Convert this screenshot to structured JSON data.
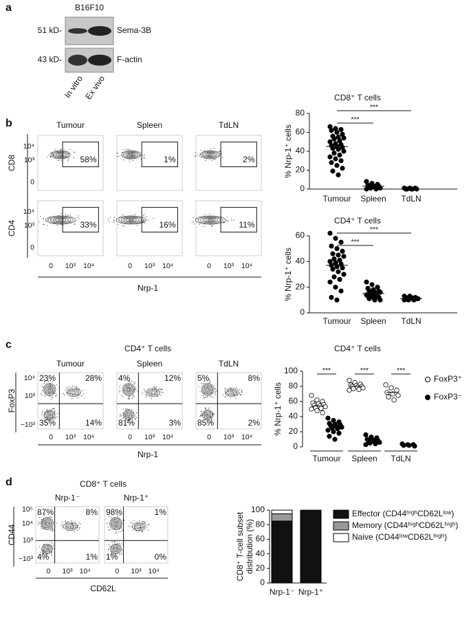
{
  "panel_a": {
    "label": "a",
    "cell_line": "B16F10",
    "blots": [
      {
        "size": "51 kD-",
        "protein": "Sema-3B"
      },
      {
        "size": "43 kD-",
        "protein": "F-actin"
      }
    ],
    "lanes": [
      "In vitro",
      "Ex vivo"
    ]
  },
  "panel_b": {
    "label": "b",
    "columns": [
      "Tumour",
      "Spleen",
      "TdLN"
    ],
    "rows": [
      {
        "marker": "CD8",
        "gates": [
          "58%",
          "1%",
          "2%"
        ]
      },
      {
        "marker": "CD4",
        "gates": [
          "33%",
          "16%",
          "11%"
        ]
      }
    ],
    "yticks": [
      "10⁴",
      "10³",
      "0"
    ],
    "xticks": [
      "0",
      "10³",
      "10⁴"
    ],
    "xlabel": "Nrp-1"
  },
  "panel_c": {
    "label": "c",
    "title": "CD4⁺ T cells",
    "columns": [
      "Tumour",
      "Spleen",
      "TdLN"
    ],
    "ylabel": "FoxP3",
    "quadrants": [
      [
        "23%",
        "28%",
        "35%",
        "14%"
      ],
      [
        "4%",
        "12%",
        "81%",
        "3%"
      ],
      [
        "5%",
        "8%",
        "85%",
        "2%"
      ]
    ],
    "yticks": [
      "10⁴",
      "10³",
      "−10³"
    ],
    "xticks": [
      "0",
      "10³",
      "10⁴"
    ],
    "xlabel": "Nrp-1"
  },
  "panel_d": {
    "label": "d",
    "title": "CD8⁺ T cells",
    "columns": [
      "Nrp-1⁻",
      "Nrp-1⁺"
    ],
    "ylabel": "CD44",
    "quadrants": [
      [
        "87%",
        "8%",
        "4%",
        "1%"
      ],
      [
        "98%",
        "1%",
        "1%",
        "0%"
      ]
    ],
    "yticks": [
      "10⁵",
      "10⁴",
      "10³",
      "−10³"
    ],
    "xticks": [
      "0",
      "10³",
      "10⁴"
    ],
    "xlabel": "CD62L"
  },
  "chart_data": [
    {
      "type": "strip",
      "title": "CD8⁺ T cells",
      "ylabel": "% Nrp-1⁺ cells",
      "categories": [
        "Tumour",
        "Spleen",
        "TdLN"
      ],
      "values": [
        [
          66,
          64,
          63,
          62,
          60,
          58,
          56,
          55,
          54,
          53,
          51,
          50,
          48,
          47,
          46,
          45,
          44,
          43,
          42,
          40,
          38,
          36,
          34,
          32,
          30,
          28,
          25,
          22,
          19,
          15
        ],
        [
          8,
          6,
          5,
          4,
          3,
          3,
          2,
          2,
          1,
          1,
          0,
          0
        ],
        [
          1,
          1,
          1,
          0,
          0,
          0,
          0,
          0
        ]
      ],
      "means": [
        45,
        3,
        0
      ],
      "significance": [
        "***",
        "***"
      ],
      "ylim": [
        0,
        80
      ],
      "yticks": [
        0,
        20,
        40,
        60,
        80
      ]
    },
    {
      "type": "strip",
      "title": "CD4⁺ T cells",
      "ylabel": "% Nrp-1⁺ cells",
      "categories": [
        "Tumour",
        "Spleen",
        "TdLN"
      ],
      "values": [
        [
          62,
          58,
          55,
          52,
          50,
          48,
          46,
          45,
          44,
          42,
          41,
          40,
          39,
          38,
          37,
          36,
          35,
          34,
          32,
          30,
          28,
          26,
          24,
          20,
          17,
          12,
          10
        ],
        [
          24,
          22,
          20,
          19,
          18,
          17,
          17,
          16,
          16,
          15,
          15,
          14,
          14,
          13,
          13,
          12,
          12,
          11,
          10,
          10
        ],
        [
          13,
          13,
          12,
          12,
          12,
          11,
          11,
          11,
          11,
          10,
          10,
          10
        ]
      ],
      "means": [
        37,
        15,
        11
      ],
      "significance": [
        "***",
        "***"
      ],
      "ylim": [
        0,
        60
      ],
      "yticks": [
        0,
        20,
        40,
        60
      ]
    },
    {
      "type": "paired_strip",
      "title": "CD4⁺ T cells",
      "ylabel": "% Nrp-1⁺ cells",
      "categories": [
        "Tumour",
        "Spleen",
        "TdLN"
      ],
      "series": [
        {
          "name": "FoxP3⁺",
          "color": "#ffffff",
          "values": [
            [
              68,
              62,
              60,
              58,
              57,
              56,
              55,
              54,
              53,
              52,
              51,
              50,
              48,
              45
            ],
            [
              88,
              85,
              83,
              82,
              81,
              80,
              80,
              79,
              78,
              77,
              76,
              75
            ],
            [
              82,
              78,
              75,
              72,
              70,
              68,
              66,
              62
            ]
          ],
          "means": [
            54,
            80,
            72
          ]
        },
        {
          "name": "FoxP3⁻",
          "color": "#000000",
          "values": [
            [
              38,
              35,
              33,
              31,
              30,
              29,
              28,
              27,
              26,
              25,
              24,
              22,
              20,
              18,
              14,
              10
            ],
            [
              16,
              13,
              12,
              10,
              9,
              8,
              8,
              7,
              6,
              5,
              4,
              3
            ],
            [
              4,
              3,
              3,
              2,
              2,
              1
            ]
          ],
          "means": [
            27,
            8,
            2
          ]
        }
      ],
      "significance": [
        "***",
        "***",
        "***"
      ],
      "ylim": [
        0,
        100
      ],
      "yticks": [
        0,
        20,
        40,
        60,
        80,
        100
      ]
    },
    {
      "type": "stacked_bar",
      "ylabel": [
        "CD8⁺ T-cell subset",
        "distribution (%)"
      ],
      "categories": [
        "Nrp-1⁻",
        "Nrp-1⁺"
      ],
      "series": [
        {
          "name": "Effector (CD44ʰⁱᵍʰCD62Lˡᵒʷ)",
          "color": "#111111",
          "values": [
            85,
            100
          ]
        },
        {
          "name": "Memory (CD44ʰⁱᵍʰCD62Lʰⁱᵍʰ)",
          "color": "#999999",
          "values": [
            10,
            0
          ]
        },
        {
          "name": "Naive (CD44ˡᵒʷCD62Lʰⁱᵍʰ)",
          "color": "#ffffff",
          "values": [
            5,
            0
          ]
        }
      ],
      "ylim": [
        0,
        100
      ],
      "yticks": [
        0,
        20,
        40,
        60,
        80,
        100
      ]
    }
  ]
}
